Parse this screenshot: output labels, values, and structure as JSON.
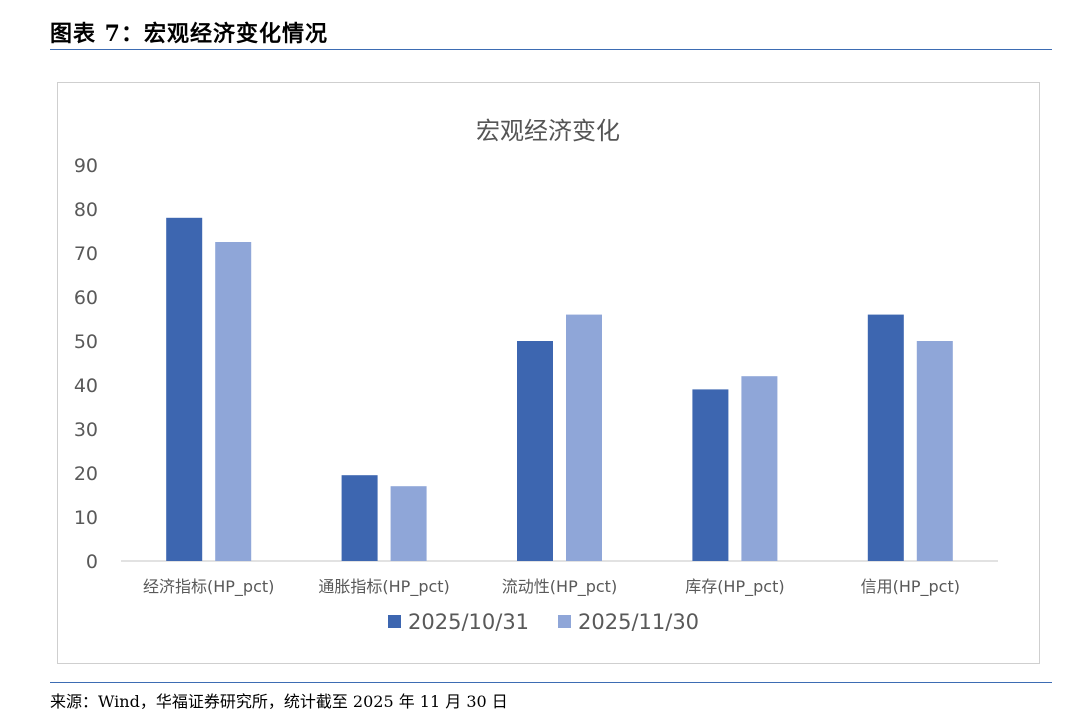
{
  "figure": {
    "title": "图表 7：宏观经济变化情况",
    "source": "来源：Wind，华福证券研究所，统计截至 2025 年 11 月 30 日"
  },
  "chart_data": {
    "type": "bar",
    "title": "宏观经济变化",
    "xlabel": "",
    "ylabel": "",
    "categories": [
      "经济指标(HP_pct)",
      "通胀指标(HP_pct)",
      "流动性(HP_pct)",
      "库存(HP_pct)",
      "信用(HP_pct)"
    ],
    "series": [
      {
        "name": "2025/10/31",
        "values": [
          78,
          19.5,
          50,
          39,
          56
        ],
        "color": "#3d66b0"
      },
      {
        "name": "2025/11/30",
        "values": [
          72.5,
          17,
          56,
          42,
          50
        ],
        "color": "#8fa6d8"
      }
    ],
    "ylim": [
      0,
      90
    ],
    "yticks": [
      0,
      10,
      20,
      30,
      40,
      50,
      60,
      70,
      80,
      90
    ],
    "grid": false,
    "legend_position": "bottom"
  }
}
